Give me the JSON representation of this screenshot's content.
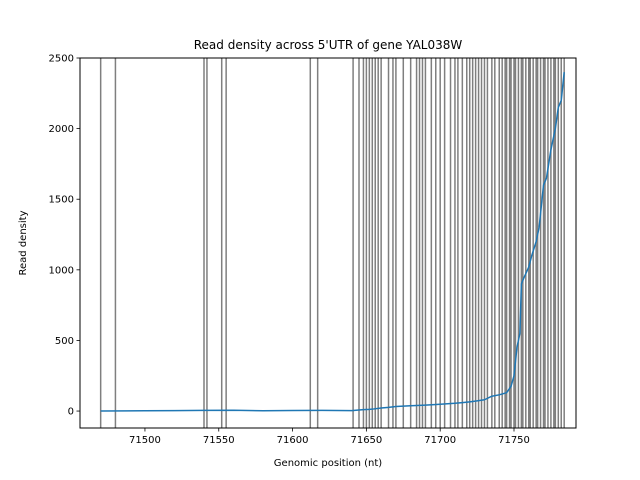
{
  "chart_data": {
    "type": "line",
    "title": "Read density across 5'UTR of gene YAL038W",
    "xlabel": "Genomic position (nt)",
    "ylabel": "Read density",
    "xlim": [
      71456,
      71792
    ],
    "ylim": [
      -120,
      2500
    ],
    "x_ticks": [
      71500,
      71550,
      71600,
      71650,
      71700,
      71750
    ],
    "y_ticks": [
      0,
      500,
      1000,
      1500,
      2000,
      2500
    ],
    "grid": false,
    "legend": "none",
    "line_color": "#1f77b4",
    "vline_color": "#000000",
    "series": [
      {
        "x": [
          71470,
          71500,
          71520,
          71540,
          71560,
          71580,
          71600,
          71620,
          71640,
          71648,
          71652,
          71655,
          71660,
          71665,
          71670,
          71675,
          71680,
          71690,
          71700,
          71710,
          71715,
          71720,
          71725,
          71730,
          71735,
          71740,
          71745,
          71748,
          71750,
          71752,
          71754,
          71755,
          71757,
          71760,
          71762,
          71765,
          71767,
          71770,
          71772,
          71775,
          71778,
          71780,
          71782,
          71784
        ],
        "y": [
          0,
          2,
          3,
          5,
          6,
          2,
          4,
          5,
          3,
          10,
          12,
          15,
          22,
          26,
          32,
          35,
          38,
          42,
          48,
          55,
          60,
          65,
          72,
          80,
          105,
          115,
          130,
          175,
          250,
          450,
          550,
          900,
          950,
          1020,
          1100,
          1200,
          1300,
          1600,
          1650,
          1850,
          2000,
          2150,
          2200,
          2400
        ]
      }
    ],
    "vlines": [
      71470,
      71480,
      71540,
      71542,
      71552,
      71555,
      71612,
      71617,
      71641,
      71645,
      71648,
      71650,
      71652,
      71654,
      71656,
      71658,
      71660,
      71665,
      71668,
      71670,
      71675,
      71680,
      71684,
      71686,
      71688,
      71690,
      71694,
      71697,
      71700,
      71703,
      71707,
      71710,
      71712,
      71715,
      71718,
      71720,
      71722,
      71724,
      71726,
      71728,
      71730,
      71732,
      71735,
      71737,
      71740,
      71742,
      71744,
      71745,
      71747,
      71748,
      71750,
      71751,
      71753,
      71755,
      71756,
      71758,
      71760,
      71761,
      71763,
      71765,
      71766,
      71768,
      71770,
      71771,
      71773,
      71775,
      71777,
      71778,
      71780,
      71782,
      71784
    ]
  }
}
